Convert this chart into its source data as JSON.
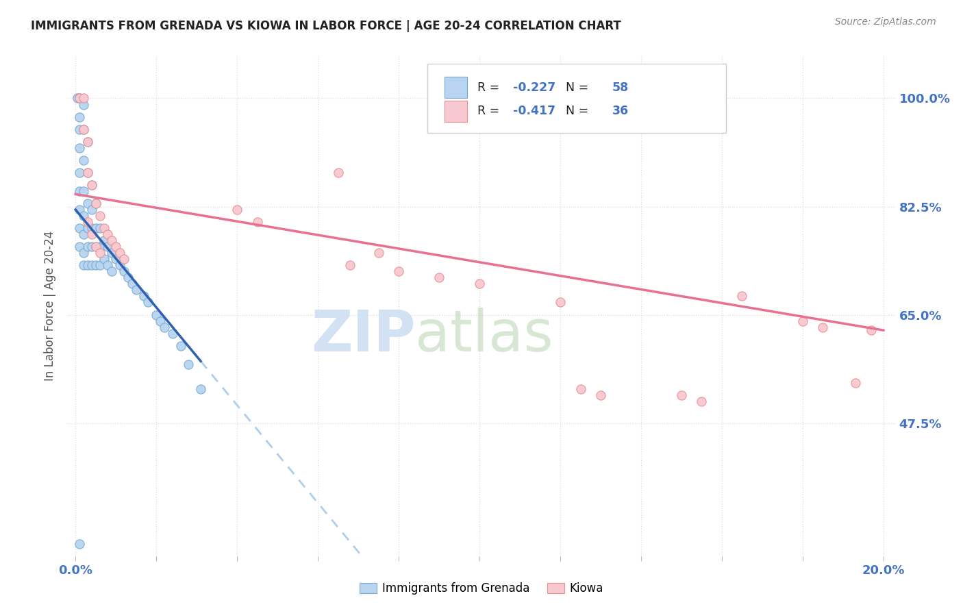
{
  "title": "IMMIGRANTS FROM GRENADA VS KIOWA IN LABOR FORCE | AGE 20-24 CORRELATION CHART",
  "source": "Source: ZipAtlas.com",
  "ylabel": "In Labor Force | Age 20-24",
  "grenada_R": -0.227,
  "grenada_N": 58,
  "kiowa_R": -0.417,
  "kiowa_N": 36,
  "grenada_scatter_color": "#b8d4f0",
  "grenada_edge_color": "#7aaad0",
  "kiowa_scatter_color": "#f8c8d0",
  "kiowa_edge_color": "#e89090",
  "grenada_line_color": "#3060b0",
  "kiowa_line_color": "#e87090",
  "dashed_line_color": "#b0ccee",
  "watermark_zip_color": "#c8ddf5",
  "watermark_atlas_color": "#c8ddf5",
  "label_color": "#4472c4",
  "title_color": "#222222",
  "source_color": "#888888",
  "grid_color": "#dddddd",
  "ytick_positions": [
    0.475,
    0.65,
    0.825,
    1.0
  ],
  "ytick_labels": [
    "47.5%",
    "65.0%",
    "82.5%",
    "100.0%"
  ],
  "xtick_positions": [
    0.0,
    0.02,
    0.04,
    0.06,
    0.08,
    0.1,
    0.12,
    0.14,
    0.16,
    0.18,
    0.2
  ],
  "xtick_labels": [
    "0.0%",
    "",
    "",
    "",
    "",
    "",
    "",
    "",
    "",
    "",
    "20.0%"
  ],
  "xlim": [
    -0.002,
    0.203
  ],
  "ylim": [
    0.26,
    1.07
  ],
  "grenada_x": [
    0.0005,
    0.001,
    0.001,
    0.001,
    0.001,
    0.001,
    0.001,
    0.001,
    0.001,
    0.001,
    0.002,
    0.002,
    0.002,
    0.002,
    0.002,
    0.002,
    0.002,
    0.002,
    0.003,
    0.003,
    0.003,
    0.003,
    0.003,
    0.003,
    0.004,
    0.004,
    0.004,
    0.004,
    0.004,
    0.005,
    0.005,
    0.005,
    0.005,
    0.006,
    0.006,
    0.006,
    0.007,
    0.007,
    0.008,
    0.008,
    0.009,
    0.009,
    0.01,
    0.011,
    0.012,
    0.013,
    0.014,
    0.015,
    0.017,
    0.018,
    0.02,
    0.021,
    0.022,
    0.024,
    0.026,
    0.028,
    0.031,
    0.001
  ],
  "grenada_y": [
    1.0,
    1.0,
    0.97,
    0.95,
    0.92,
    0.88,
    0.85,
    0.82,
    0.79,
    0.76,
    0.99,
    0.95,
    0.9,
    0.85,
    0.81,
    0.78,
    0.75,
    0.73,
    0.93,
    0.88,
    0.83,
    0.79,
    0.76,
    0.73,
    0.86,
    0.82,
    0.79,
    0.76,
    0.73,
    0.83,
    0.79,
    0.76,
    0.73,
    0.79,
    0.76,
    0.73,
    0.77,
    0.74,
    0.76,
    0.73,
    0.75,
    0.72,
    0.74,
    0.73,
    0.72,
    0.71,
    0.7,
    0.69,
    0.68,
    0.67,
    0.65,
    0.64,
    0.63,
    0.62,
    0.6,
    0.57,
    0.53,
    0.28
  ],
  "kiowa_x": [
    0.001,
    0.002,
    0.002,
    0.003,
    0.003,
    0.004,
    0.005,
    0.006,
    0.007,
    0.003,
    0.004,
    0.005,
    0.006,
    0.008,
    0.009,
    0.01,
    0.011,
    0.012,
    0.04,
    0.045,
    0.065,
    0.068,
    0.075,
    0.08,
    0.09,
    0.1,
    0.12,
    0.125,
    0.13,
    0.15,
    0.155,
    0.165,
    0.18,
    0.185,
    0.193,
    0.197
  ],
  "kiowa_y": [
    1.0,
    1.0,
    0.95,
    0.93,
    0.88,
    0.86,
    0.83,
    0.81,
    0.79,
    0.8,
    0.78,
    0.76,
    0.75,
    0.78,
    0.77,
    0.76,
    0.75,
    0.74,
    0.82,
    0.8,
    0.88,
    0.73,
    0.75,
    0.72,
    0.71,
    0.7,
    0.67,
    0.53,
    0.52,
    0.52,
    0.51,
    0.68,
    0.64,
    0.63,
    0.54,
    0.625
  ]
}
